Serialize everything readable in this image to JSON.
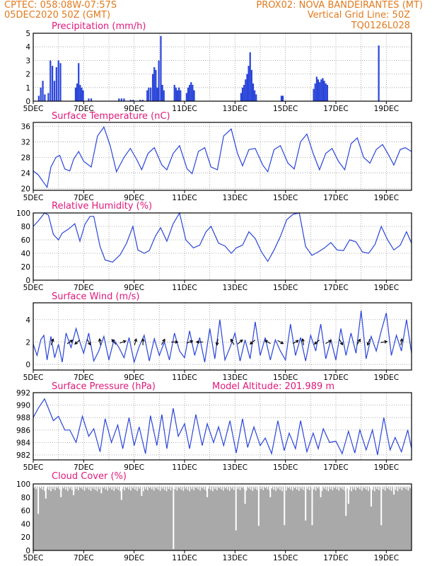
{
  "header": {
    "line1_left": "CPTEC:   058:08W-07:57S",
    "line1_right": "PROX02: NOVA BANDEIRANTES (MT)",
    "line2_left": "05DEC2020  50Z (GMT)",
    "line2_right": "Vertical Grid Line: 50Z",
    "line3_right": "TQ0126L028"
  },
  "x_tick_labels": [
    "5DEC",
    "7DEC",
    "9DEC",
    "11DEC",
    "13DEC",
    "15DEC",
    "17DEC",
    "19DEC"
  ],
  "colors": {
    "line": "#2a45d9",
    "bar": "#2a45d9",
    "cloud": "#a9a9a9",
    "header": "#e07a1e",
    "panel_title": "#e0197a",
    "grid": "#9a9a9a"
  },
  "chart_data": [
    {
      "type": "bar",
      "title": "Precipitation (mm/h)",
      "ylim": [
        0,
        5
      ],
      "yticks": [
        0,
        1,
        2,
        3,
        4,
        5
      ],
      "x_unit": "days since 5DEC",
      "xlim": [
        0,
        15
      ],
      "events": [
        {
          "x": 0.22,
          "v": 0.4
        },
        {
          "x": 0.3,
          "v": 1.0
        },
        {
          "x": 0.38,
          "v": 1.5
        },
        {
          "x": 0.46,
          "v": 0.5
        },
        {
          "x": 0.6,
          "v": 0.6
        },
        {
          "x": 0.68,
          "v": 3.0
        },
        {
          "x": 0.76,
          "v": 2.6
        },
        {
          "x": 0.84,
          "v": 1.5
        },
        {
          "x": 0.92,
          "v": 2.5
        },
        {
          "x": 1.0,
          "v": 3.0
        },
        {
          "x": 1.08,
          "v": 2.8
        },
        {
          "x": 1.68,
          "v": 1.0
        },
        {
          "x": 1.74,
          "v": 1.3
        },
        {
          "x": 1.8,
          "v": 2.8
        },
        {
          "x": 1.86,
          "v": 1.2
        },
        {
          "x": 1.92,
          "v": 1.0
        },
        {
          "x": 1.98,
          "v": 0.8
        },
        {
          "x": 2.2,
          "v": 0.2
        },
        {
          "x": 2.3,
          "v": 0.2
        },
        {
          "x": 3.4,
          "v": 0.2
        },
        {
          "x": 3.5,
          "v": 0.2
        },
        {
          "x": 3.6,
          "v": 0.2
        },
        {
          "x": 3.86,
          "v": 0.1
        },
        {
          "x": 3.96,
          "v": 0.1
        },
        {
          "x": 4.24,
          "v": 0.1
        },
        {
          "x": 4.34,
          "v": 0.1
        },
        {
          "x": 4.52,
          "v": 0.8
        },
        {
          "x": 4.58,
          "v": 1.0
        },
        {
          "x": 4.66,
          "v": 1.0
        },
        {
          "x": 4.74,
          "v": 2.0
        },
        {
          "x": 4.8,
          "v": 2.5
        },
        {
          "x": 4.86,
          "v": 2.3
        },
        {
          "x": 4.92,
          "v": 1.0
        },
        {
          "x": 4.98,
          "v": 3.0
        },
        {
          "x": 5.06,
          "v": 4.8
        },
        {
          "x": 5.12,
          "v": 1.2
        },
        {
          "x": 5.18,
          "v": 0.8
        },
        {
          "x": 5.6,
          "v": 1.2
        },
        {
          "x": 5.66,
          "v": 1.0
        },
        {
          "x": 5.72,
          "v": 0.8
        },
        {
          "x": 5.78,
          "v": 1.0
        },
        {
          "x": 5.84,
          "v": 0.8
        },
        {
          "x": 6.08,
          "v": 0.6
        },
        {
          "x": 6.14,
          "v": 1.0
        },
        {
          "x": 6.2,
          "v": 1.2
        },
        {
          "x": 6.26,
          "v": 1.4
        },
        {
          "x": 6.32,
          "v": 1.2
        },
        {
          "x": 6.38,
          "v": 0.8
        },
        {
          "x": 8.24,
          "v": 0.6
        },
        {
          "x": 8.3,
          "v": 1.0
        },
        {
          "x": 8.36,
          "v": 1.2
        },
        {
          "x": 8.42,
          "v": 1.6
        },
        {
          "x": 8.48,
          "v": 2.0
        },
        {
          "x": 8.54,
          "v": 2.6
        },
        {
          "x": 8.6,
          "v": 3.6
        },
        {
          "x": 8.66,
          "v": 2.3
        },
        {
          "x": 8.72,
          "v": 1.3
        },
        {
          "x": 8.78,
          "v": 0.8
        },
        {
          "x": 8.84,
          "v": 0.5
        },
        {
          "x": 9.84,
          "v": 0.4
        },
        {
          "x": 9.9,
          "v": 0.4
        },
        {
          "x": 11.12,
          "v": 0.9
        },
        {
          "x": 11.18,
          "v": 1.3
        },
        {
          "x": 11.24,
          "v": 1.8
        },
        {
          "x": 11.3,
          "v": 1.6
        },
        {
          "x": 11.36,
          "v": 1.4
        },
        {
          "x": 11.42,
          "v": 1.6
        },
        {
          "x": 11.48,
          "v": 1.7
        },
        {
          "x": 11.54,
          "v": 1.5
        },
        {
          "x": 11.6,
          "v": 1.3
        },
        {
          "x": 11.66,
          "v": 1.2
        },
        {
          "x": 13.7,
          "v": 4.1
        }
      ]
    },
    {
      "type": "line",
      "title": "Surface Temperature (nC)",
      "ylim": [
        19.5,
        37
      ],
      "yticks": [
        20,
        24,
        28,
        32,
        36
      ],
      "x_unit": "days since 5DEC",
      "x": [
        0,
        0.2,
        0.45,
        0.55,
        0.7,
        0.9,
        1.05,
        1.25,
        1.45,
        1.6,
        1.8,
        2.0,
        2.3,
        2.55,
        2.8,
        3.05,
        3.3,
        3.6,
        3.85,
        4.1,
        4.3,
        4.55,
        4.8,
        5.1,
        5.3,
        5.55,
        5.8,
        6.1,
        6.3,
        6.55,
        6.8,
        7.05,
        7.3,
        7.55,
        7.85,
        8.1,
        8.3,
        8.55,
        8.8,
        9.1,
        9.3,
        9.55,
        9.8,
        10.1,
        10.35,
        10.6,
        10.85,
        11.1,
        11.35,
        11.6,
        11.85,
        12.1,
        12.35,
        12.6,
        12.85,
        13.1,
        13.35,
        13.6,
        13.85,
        14.1,
        14.3,
        14.55,
        14.75,
        15.0
      ],
      "values": [
        24.5,
        23.5,
        21.2,
        20.3,
        25.5,
        28.0,
        28.5,
        25.0,
        24.5,
        27.5,
        29.5,
        27.0,
        25.5,
        33.5,
        35.8,
        31.0,
        24.3,
        28.0,
        30.3,
        27.5,
        24.8,
        29.0,
        30.5,
        26.0,
        24.8,
        29.0,
        31.0,
        25.0,
        23.8,
        29.5,
        30.5,
        25.5,
        24.8,
        33.5,
        35.3,
        29.0,
        25.8,
        30.0,
        30.3,
        26.0,
        24.3,
        30.0,
        31.0,
        26.5,
        25.0,
        32.0,
        34.0,
        29.0,
        24.8,
        29.0,
        30.3,
        27.0,
        24.8,
        31.5,
        33.0,
        28.0,
        26.5,
        30.0,
        31.3,
        28.5,
        26.0,
        30.0,
        30.5,
        29.5
      ]
    },
    {
      "type": "line",
      "title": "Relative Humidity (%)",
      "ylim": [
        0,
        100
      ],
      "yticks": [
        0,
        20,
        40,
        60,
        80,
        100
      ],
      "x_unit": "days since 5DEC",
      "x": [
        0,
        0.2,
        0.45,
        0.6,
        0.8,
        1.0,
        1.15,
        1.4,
        1.65,
        1.85,
        2.05,
        2.25,
        2.4,
        2.65,
        2.85,
        3.15,
        3.45,
        3.7,
        3.95,
        4.15,
        4.4,
        4.6,
        4.85,
        5.05,
        5.3,
        5.55,
        5.8,
        6.05,
        6.35,
        6.6,
        6.85,
        7.05,
        7.35,
        7.6,
        7.85,
        8.05,
        8.3,
        8.55,
        8.8,
        9.05,
        9.3,
        9.55,
        9.8,
        10.05,
        10.3,
        10.55,
        10.8,
        11.05,
        11.3,
        11.55,
        11.8,
        12.05,
        12.3,
        12.55,
        12.8,
        13.05,
        13.3,
        13.55,
        13.8,
        14.05,
        14.3,
        14.55,
        14.8,
        15.0
      ],
      "values": [
        80,
        88,
        100,
        97,
        68,
        60,
        70,
        76,
        84,
        58,
        83,
        95,
        95,
        50,
        30,
        27,
        38,
        55,
        80,
        45,
        40,
        44,
        66,
        78,
        58,
        84,
        100,
        60,
        48,
        52,
        72,
        80,
        55,
        51,
        40,
        48,
        52,
        72,
        62,
        42,
        28,
        45,
        65,
        90,
        98,
        100,
        50,
        37,
        42,
        48,
        56,
        45,
        44,
        60,
        57,
        42,
        40,
        53,
        80,
        60,
        45,
        52,
        72,
        55
      ]
    },
    {
      "type": "line",
      "title": "Surface Wind (m/s)",
      "ylim": [
        -0.5,
        5.5
      ],
      "yticks": [
        0,
        2,
        4
      ],
      "x_unit": "days since 5DEC",
      "x": [
        0,
        0.15,
        0.3,
        0.42,
        0.55,
        0.7,
        0.85,
        1.0,
        1.15,
        1.3,
        1.5,
        1.7,
        1.85,
        2.0,
        2.2,
        2.4,
        2.6,
        2.8,
        3.0,
        3.2,
        3.4,
        3.6,
        3.8,
        4.0,
        4.2,
        4.4,
        4.6,
        4.8,
        5.0,
        5.2,
        5.4,
        5.6,
        5.8,
        6.0,
        6.2,
        6.4,
        6.6,
        6.8,
        7.0,
        7.2,
        7.4,
        7.6,
        7.8,
        8.0,
        8.2,
        8.4,
        8.6,
        8.8,
        9.0,
        9.2,
        9.4,
        9.6,
        9.8,
        10.0,
        10.2,
        10.4,
        10.6,
        10.8,
        11.0,
        11.2,
        11.4,
        11.6,
        11.8,
        12.0,
        12.2,
        12.4,
        12.6,
        12.8,
        13.0,
        13.2,
        13.4,
        13.6,
        13.8,
        14.0,
        14.2,
        14.4,
        14.6,
        14.8,
        15.0
      ],
      "values": [
        1.8,
        0.8,
        2.2,
        2.6,
        0.4,
        2.5,
        0.6,
        1.8,
        0.2,
        2.8,
        1.5,
        3.2,
        2.0,
        1.0,
        2.8,
        0.3,
        1.2,
        2.5,
        0.4,
        2.2,
        1.5,
        0.6,
        2.4,
        0.2,
        1.6,
        2.6,
        0.3,
        2.3,
        0.8,
        2.0,
        0.4,
        2.8,
        1.2,
        0.6,
        3.0,
        0.8,
        2.4,
        0.2,
        3.2,
        0.5,
        4.0,
        0.4,
        1.5,
        2.8,
        0.3,
        2.2,
        0.5,
        3.8,
        0.8,
        2.4,
        0.4,
        2.2,
        1.2,
        0.4,
        3.6,
        0.8,
        2.4,
        0.3,
        2.6,
        1.2,
        3.6,
        0.5,
        2.2,
        0.4,
        3.2,
        0.8,
        2.8,
        1.0,
        4.8,
        0.5,
        2.5,
        1.2,
        3.0,
        4.6,
        0.8,
        2.6,
        1.2,
        4.0,
        1.0
      ]
    },
    {
      "type": "line",
      "title": "Surface Pressure (hPa)",
      "annotation": "Model Altitude: 201.989 m",
      "ylim": [
        981.2,
        992
      ],
      "yticks": [
        982,
        984,
        986,
        988,
        990,
        992
      ],
      "x_unit": "days since 5DEC",
      "x": [
        0,
        0.2,
        0.45,
        0.6,
        0.8,
        1.0,
        1.25,
        1.45,
        1.7,
        1.95,
        2.2,
        2.4,
        2.65,
        2.85,
        3.1,
        3.35,
        3.55,
        3.8,
        4.0,
        4.2,
        4.45,
        4.65,
        4.9,
        5.1,
        5.3,
        5.55,
        5.75,
        6.0,
        6.2,
        6.45,
        6.7,
        6.9,
        7.15,
        7.35,
        7.55,
        7.8,
        8.05,
        8.3,
        8.5,
        8.75,
        9.0,
        9.2,
        9.45,
        9.7,
        9.95,
        10.15,
        10.4,
        10.6,
        10.85,
        11.1,
        11.3,
        11.5,
        11.75,
        12.0,
        12.25,
        12.5,
        12.75,
        12.95,
        13.2,
        13.45,
        13.65,
        13.9,
        14.15,
        14.35,
        14.6,
        14.85,
        15.0
      ],
      "values": [
        988.0,
        989.5,
        991.0,
        989.5,
        987.5,
        988.2,
        986.0,
        986.0,
        984.0,
        988.2,
        985.0,
        986.2,
        982.5,
        987.8,
        984.0,
        986.8,
        983.0,
        988.0,
        983.5,
        986.5,
        982.2,
        988.3,
        983.5,
        988.5,
        983.0,
        989.5,
        985.0,
        987.0,
        983.0,
        988.5,
        983.5,
        987.0,
        984.0,
        986.5,
        983.5,
        987.5,
        982.3,
        987.8,
        983.2,
        986.5,
        983.5,
        984.7,
        982.2,
        987.5,
        982.7,
        985.5,
        983.0,
        987.5,
        982.5,
        985.5,
        983.0,
        986.2,
        984.0,
        984.2,
        982.2,
        985.8,
        982.3,
        986.0,
        982.8,
        986.0,
        982.0,
        988.0,
        982.8,
        984.8,
        982.5,
        986.0,
        983.0
      ]
    },
    {
      "type": "bar",
      "title": "Cloud Cover (%)",
      "ylim": [
        0,
        100
      ],
      "yticks": [
        0,
        20,
        40,
        60,
        80,
        100
      ],
      "x_unit": "days since 5DEC",
      "xlim": [
        0,
        15
      ],
      "baseline_percent": 96,
      "dips": [
        {
          "x": 0.2,
          "v": 55
        },
        {
          "x": 0.5,
          "v": 78
        },
        {
          "x": 1.1,
          "v": 80
        },
        {
          "x": 1.6,
          "v": 83
        },
        {
          "x": 2.7,
          "v": 86
        },
        {
          "x": 3.5,
          "v": 76
        },
        {
          "x": 4.3,
          "v": 82
        },
        {
          "x": 5.56,
          "v": 2
        },
        {
          "x": 6.9,
          "v": 80
        },
        {
          "x": 8.04,
          "v": 30
        },
        {
          "x": 8.4,
          "v": 70
        },
        {
          "x": 8.94,
          "v": 37
        },
        {
          "x": 9.4,
          "v": 80
        },
        {
          "x": 9.96,
          "v": 38
        },
        {
          "x": 10.8,
          "v": 45
        },
        {
          "x": 11.06,
          "v": 38
        },
        {
          "x": 11.4,
          "v": 80
        },
        {
          "x": 12.4,
          "v": 52
        },
        {
          "x": 12.5,
          "v": 70
        },
        {
          "x": 13.4,
          "v": 66
        },
        {
          "x": 13.8,
          "v": 38
        },
        {
          "x": 14.3,
          "v": 84
        }
      ]
    }
  ]
}
